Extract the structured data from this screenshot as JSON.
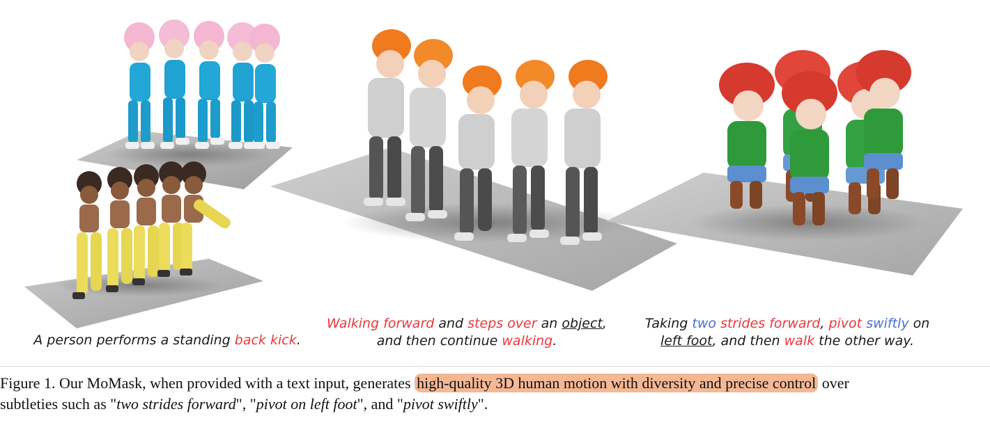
{
  "captions": {
    "left": {
      "text1": "A person performs a standing ",
      "red1": "back kick",
      "text2": "."
    },
    "middle": {
      "line1_red1": "Walking forward",
      "line1_text1": " and ",
      "line1_red2": "steps over",
      "line1_text2": " an ",
      "line1_ul1": "object",
      "line1_text3": ",",
      "line2_text1": "and then continue ",
      "line2_red1": "walking",
      "line2_text2": "."
    },
    "right": {
      "line1_text1": "Taking ",
      "line1_blue1": "two",
      "line1_text2": " ",
      "line1_red1": "strides forward",
      "line1_text3": ", ",
      "line1_red2": "pivot",
      "line1_text4": " ",
      "line1_blue2": "swiftly",
      "line1_text5": " on",
      "line2_ul1": "left foot",
      "line2_text1": ", and then ",
      "line2_red1": "walk",
      "line2_text2": " the other way."
    }
  },
  "figure_caption": {
    "prefix": "Figure 1. Our MoMask, when provided with a text input, generates ",
    "highlight": "high-quality 3D human motion with diversity and precise control",
    "suffix": " over",
    "line2_a": "subtleties such as \"",
    "line2_it1": "two strides forward",
    "line2_b": "\", \"",
    "line2_it2": "pivot on left foot",
    "line2_c": "\", and \"",
    "line2_it3": "pivot swiftly",
    "line2_d": "\"."
  },
  "colors": {
    "accent_red": "#e8373b",
    "accent_blue": "#4a6fd4",
    "highlight": "#f5b894"
  }
}
